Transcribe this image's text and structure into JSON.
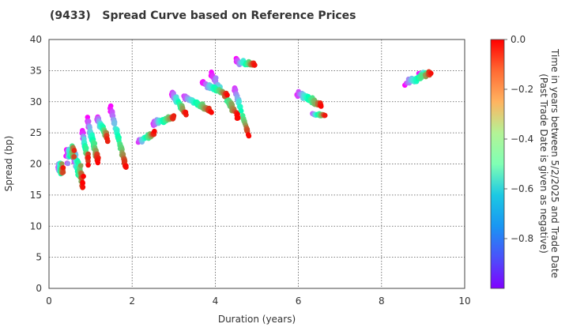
{
  "chart_data": {
    "type": "scatter",
    "title": "(9433)   Spread Curve based on Reference Prices",
    "xlabel": "Duration (years)",
    "ylabel": "Spread (bp)",
    "xlim": [
      0,
      10
    ],
    "ylim": [
      0,
      40
    ],
    "xticks": [
      "0",
      "2",
      "4",
      "6",
      "8",
      "10"
    ],
    "yticks": [
      "0",
      "5",
      "10",
      "15",
      "20",
      "25",
      "30",
      "35",
      "40"
    ],
    "grid": true,
    "colorbar": {
      "label_line1": "Time in years between 5/2/2025 and Trade Date",
      "label_line2": "(Past Trade Date is given as negative)",
      "range": [
        -1,
        0
      ],
      "ticks": [
        "0.0",
        "−0.2",
        "−0.4",
        "−0.6",
        "−0.8"
      ],
      "tick_values": [
        0,
        -0.2,
        -0.4,
        -0.6,
        -0.8
      ],
      "colormap": "rainbow"
    },
    "clusters": [
      {
        "x0": 0.22,
        "x1": 0.34,
        "spread_new": 19.0,
        "spread_old": 19.5,
        "noise": 1.4,
        "n": 45
      },
      {
        "x0": 0.42,
        "x1": 0.62,
        "spread_new": 22.0,
        "spread_old": 21.0,
        "noise": 2.0,
        "n": 45
      },
      {
        "x0": 0.58,
        "x1": 0.82,
        "spread_new": 17.5,
        "spread_old": 21.5,
        "noise": 2.2,
        "n": 80
      },
      {
        "x0": 0.8,
        "x1": 0.95,
        "spread_new": 20.5,
        "spread_old": 25.0,
        "noise": 1.3,
        "n": 35
      },
      {
        "x0": 0.92,
        "x1": 1.18,
        "spread_new": 20.5,
        "spread_old": 27.0,
        "noise": 1.0,
        "n": 70
      },
      {
        "x0": 1.15,
        "x1": 1.42,
        "spread_new": 24.0,
        "spread_old": 27.5,
        "noise": 1.0,
        "n": 55
      },
      {
        "x0": 1.48,
        "x1": 1.85,
        "spread_new": 19.5,
        "spread_old": 29.0,
        "noise": 0.8,
        "n": 70
      },
      {
        "x0": 2.12,
        "x1": 2.55,
        "spread_new": 25.0,
        "spread_old": 23.5,
        "noise": 0.6,
        "n": 45
      },
      {
        "x0": 2.48,
        "x1": 3.02,
        "spread_new": 27.5,
        "spread_old": 26.5,
        "noise": 0.7,
        "n": 55
      },
      {
        "x0": 2.95,
        "x1": 3.3,
        "spread_new": 28.0,
        "spread_old": 31.5,
        "noise": 0.7,
        "n": 50
      },
      {
        "x0": 3.2,
        "x1": 3.9,
        "spread_new": 28.5,
        "spread_old": 31.0,
        "noise": 0.6,
        "n": 60
      },
      {
        "x0": 3.7,
        "x1": 4.3,
        "spread_new": 31.0,
        "spread_old": 33.0,
        "noise": 0.6,
        "n": 45
      },
      {
        "x0": 3.9,
        "x1": 4.55,
        "spread_new": 27.5,
        "spread_old": 34.5,
        "noise": 1.0,
        "n": 60
      },
      {
        "x0": 4.45,
        "x1": 4.8,
        "spread_new": 24.5,
        "spread_old": 32.5,
        "noise": 0.5,
        "n": 40
      },
      {
        "x0": 4.5,
        "x1": 4.95,
        "spread_new": 36.0,
        "spread_old": 36.5,
        "noise": 0.8,
        "n": 40
      },
      {
        "x0": 5.95,
        "x1": 6.55,
        "spread_new": 29.5,
        "spread_old": 31.5,
        "noise": 0.7,
        "n": 55
      },
      {
        "x0": 6.3,
        "x1": 6.65,
        "spread_new": 27.8,
        "spread_old": 28.0,
        "noise": 0.3,
        "n": 25
      },
      {
        "x0": 8.55,
        "x1": 9.2,
        "spread_new": 34.5,
        "spread_old": 33.0,
        "noise": 0.9,
        "n": 50
      },
      {
        "x0": 8.9,
        "x1": 9.2,
        "spread_new": 34.5,
        "spread_old": 34.5,
        "noise": 0.5,
        "n": 15
      }
    ]
  }
}
